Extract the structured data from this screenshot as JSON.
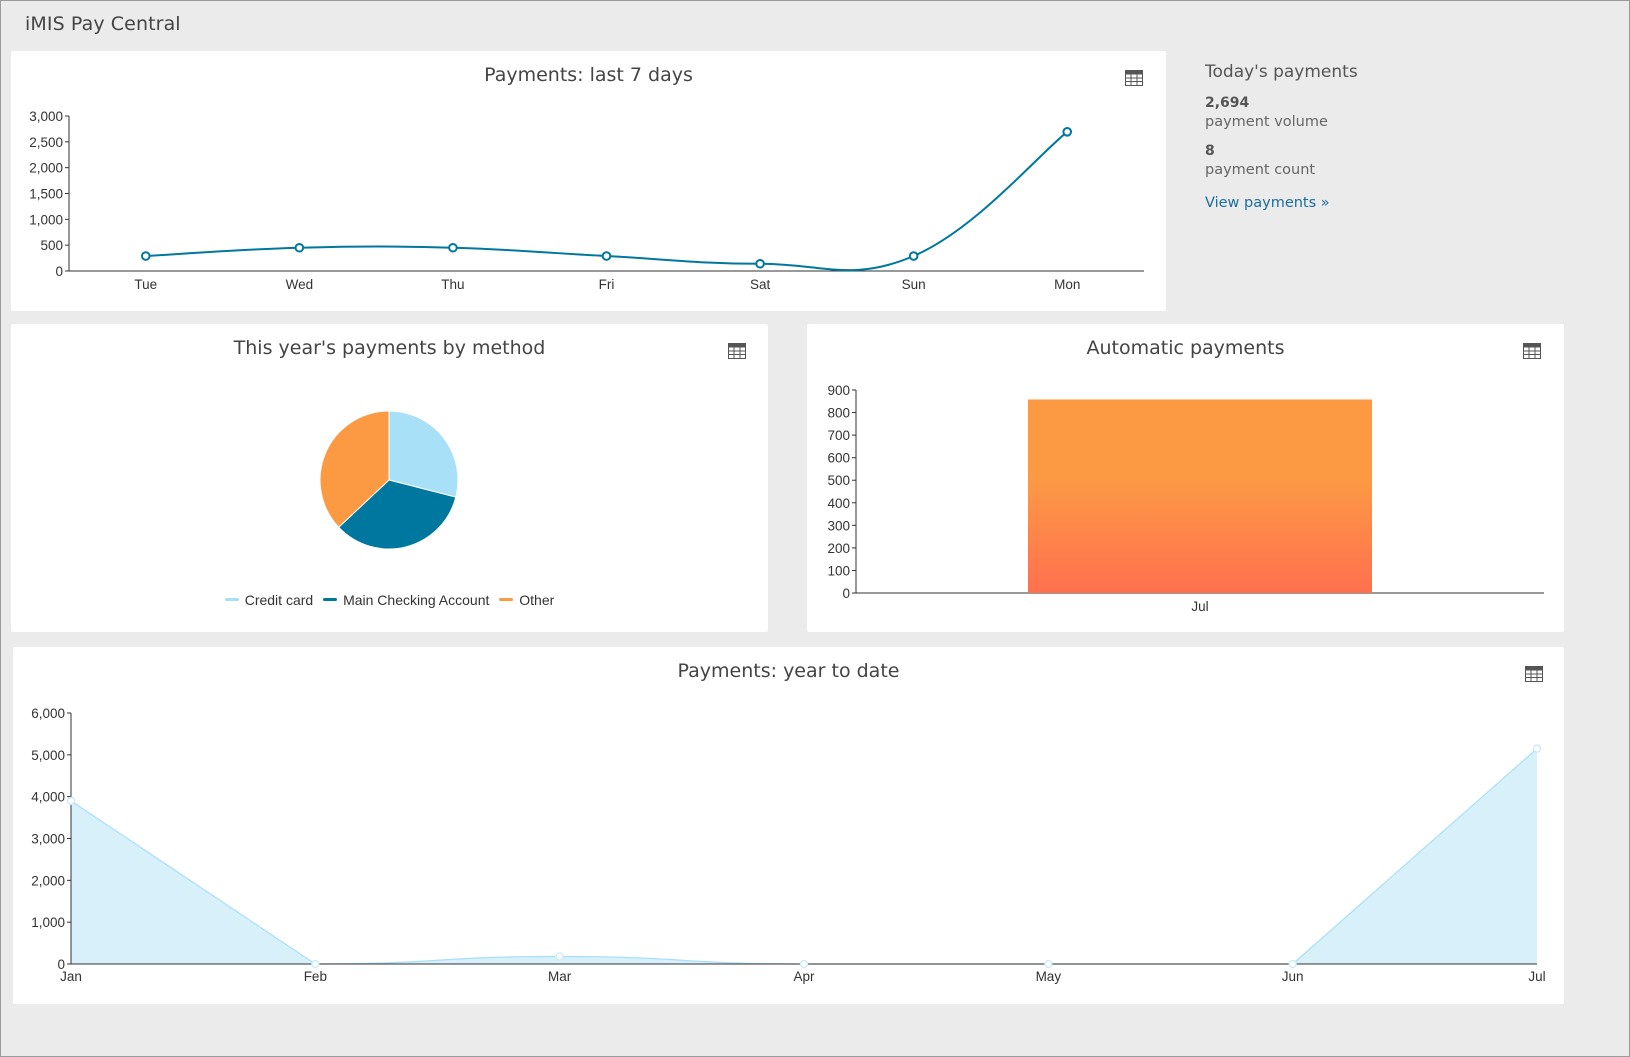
{
  "app": {
    "title": "iMIS Pay Central"
  },
  "colors": {
    "line": "#00779e",
    "credit_card": "#a8e0f7",
    "main_checking": "#00779e",
    "other": "#fc9a44",
    "bar_top": "#fc9a44",
    "bar_bottom": "#ff704f",
    "area_fill": "#d8f0fa",
    "area_line": "#a8e0f7",
    "link": "#1a6ea0"
  },
  "last7": {
    "title": "Payments: last 7 days",
    "table_icon": "table-icon",
    "chart_data": {
      "type": "line",
      "categories": [
        "Tue",
        "Wed",
        "Thu",
        "Fri",
        "Sat",
        "Sun",
        "Mon"
      ],
      "values": [
        290,
        450,
        450,
        290,
        140,
        290,
        2694
      ],
      "ylim": [
        0,
        3000
      ],
      "yticks": [
        "0",
        "500",
        "1,000",
        "1,500",
        "2,000",
        "2,500",
        "3,000"
      ],
      "ytick_values": [
        0,
        500,
        1000,
        1500,
        2000,
        2500,
        3000
      ]
    }
  },
  "today": {
    "title": "Today's payments",
    "volume_value": "2,694",
    "volume_label": "payment volume",
    "count_value": "8",
    "count_label": "payment count",
    "link_label": "View payments »"
  },
  "by_method": {
    "title": "This year's payments by method",
    "table_icon": "table-icon",
    "chart_data": {
      "type": "pie",
      "slices": [
        {
          "label": "Credit card",
          "value": 29
        },
        {
          "label": "Main Checking Account",
          "value": 34
        },
        {
          "label": "Other",
          "value": 37
        }
      ]
    },
    "legend": [
      "Credit card",
      "Main Checking Account",
      "Other"
    ]
  },
  "automatic": {
    "title": "Automatic payments",
    "table_icon": "table-icon",
    "chart_data": {
      "type": "bar",
      "categories": [
        "Jul"
      ],
      "values": [
        858
      ],
      "ylim": [
        0,
        900
      ],
      "yticks": [
        "0",
        "100",
        "200",
        "300",
        "400",
        "500",
        "600",
        "700",
        "800",
        "900"
      ],
      "ytick_values": [
        0,
        100,
        200,
        300,
        400,
        500,
        600,
        700,
        800,
        900
      ]
    }
  },
  "ytd": {
    "title": "Payments: year to date",
    "table_icon": "table-icon",
    "chart_data": {
      "type": "area",
      "categories": [
        "Jan",
        "Feb",
        "Mar",
        "Apr",
        "May",
        "Jun",
        "Jul"
      ],
      "values": [
        3900,
        0,
        180,
        0,
        0,
        0,
        5150
      ],
      "ylim": [
        0,
        6000
      ],
      "yticks": [
        "0",
        "1,000",
        "2,000",
        "3,000",
        "4,000",
        "5,000",
        "6,000"
      ],
      "ytick_values": [
        0,
        1000,
        2000,
        3000,
        4000,
        5000,
        6000
      ]
    }
  }
}
